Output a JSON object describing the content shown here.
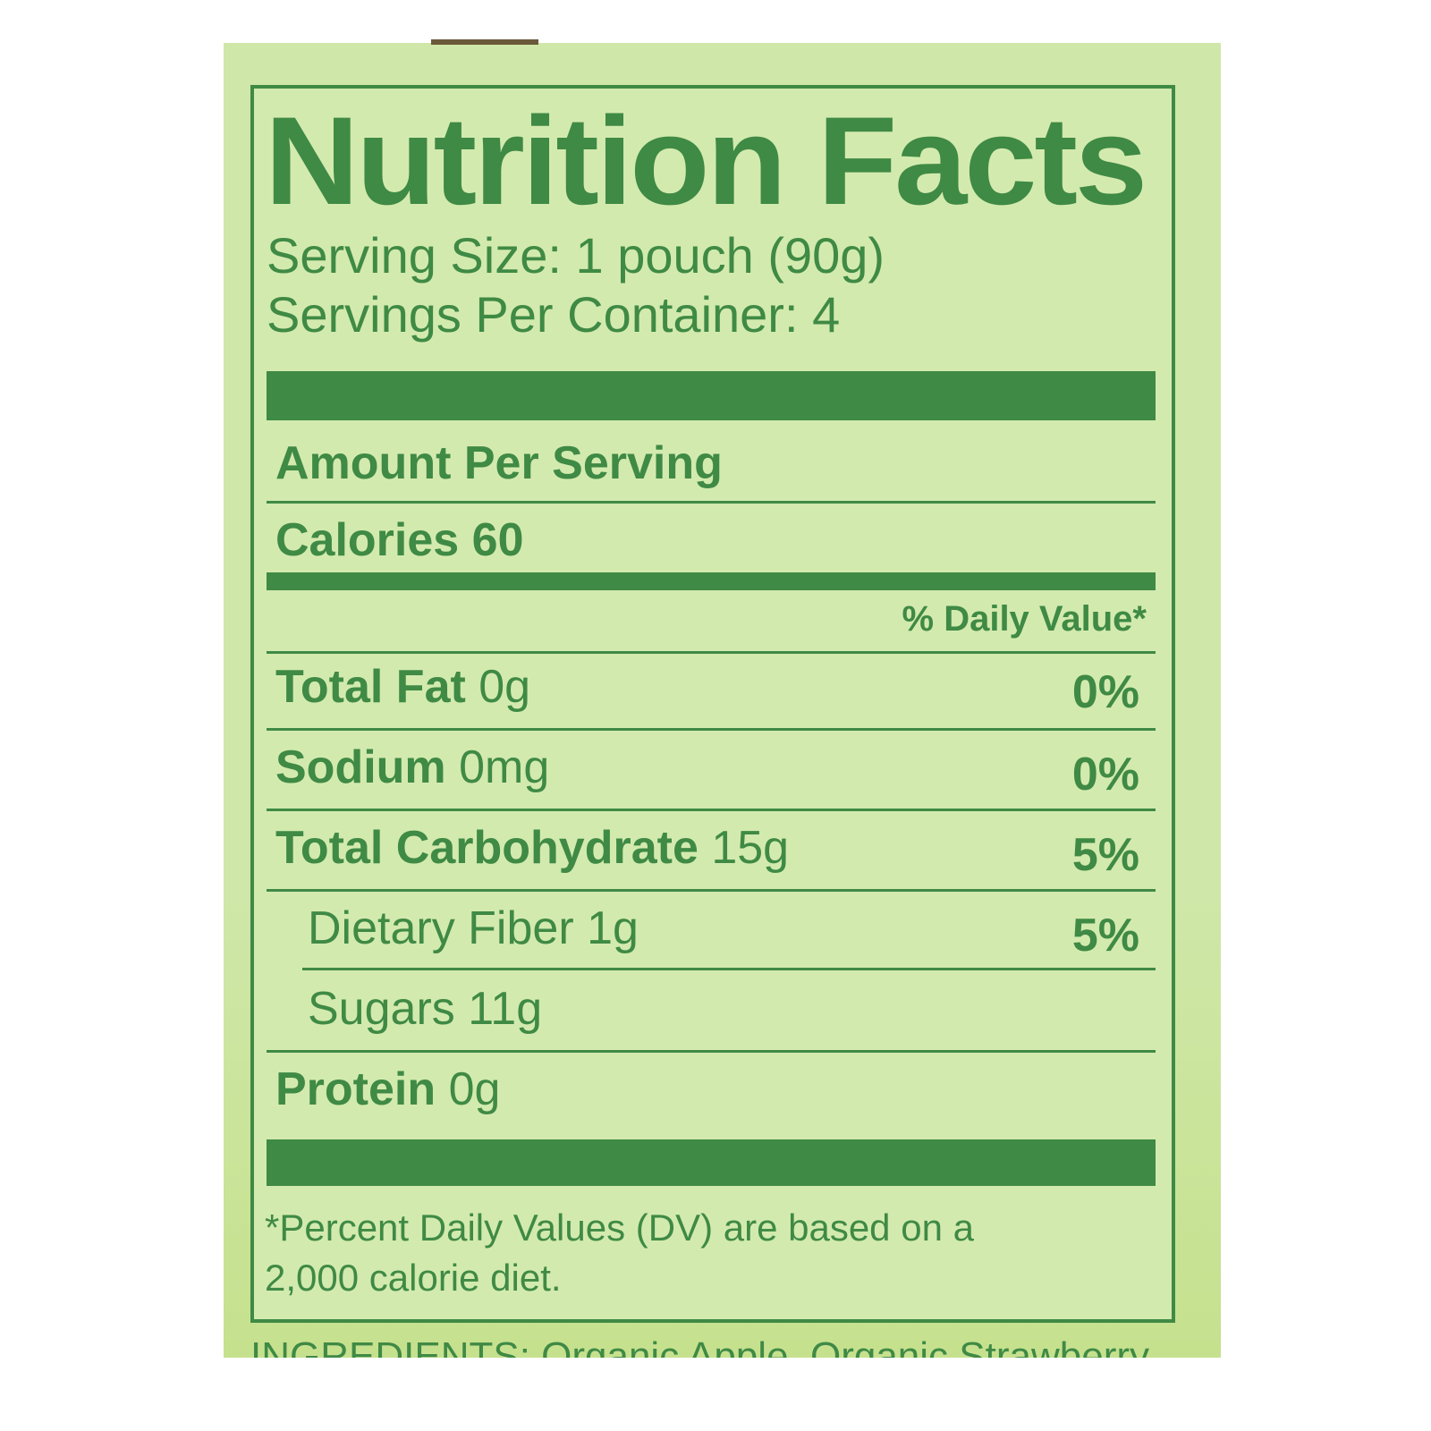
{
  "label": {
    "title": "Nutrition Facts",
    "serving_size": "Serving Size: 1 pouch (90g)",
    "servings_per_container": "Servings Per Container: 4",
    "amount_per_serving": "Amount Per Serving",
    "calories": "Calories 60",
    "daily_value_header": "% Daily Value*",
    "nutrients": [
      {
        "name": "Total Fat",
        "amount": "0g",
        "dv": "0%"
      },
      {
        "name": "Sodium",
        "amount": "0mg",
        "dv": "0%"
      },
      {
        "name": "Total Carbohydrate",
        "amount": "15g",
        "dv": "5%"
      },
      {
        "name": "Dietary Fiber 1g",
        "amount": "",
        "dv": "5%"
      },
      {
        "name": "Sugars 11g",
        "amount": "",
        "dv": ""
      },
      {
        "name": "Protein",
        "amount": "0g",
        "dv": ""
      }
    ],
    "footnote_line1": "*Percent Daily Values (DV) are based on a",
    "footnote_line2": "2,000 calorie diet.",
    "ingredients_partial": "INGREDIENTS: Organic Apple, Organic Strawberry"
  },
  "colors": {
    "ink": "#3f8a45",
    "background": "#cfe7a8"
  }
}
